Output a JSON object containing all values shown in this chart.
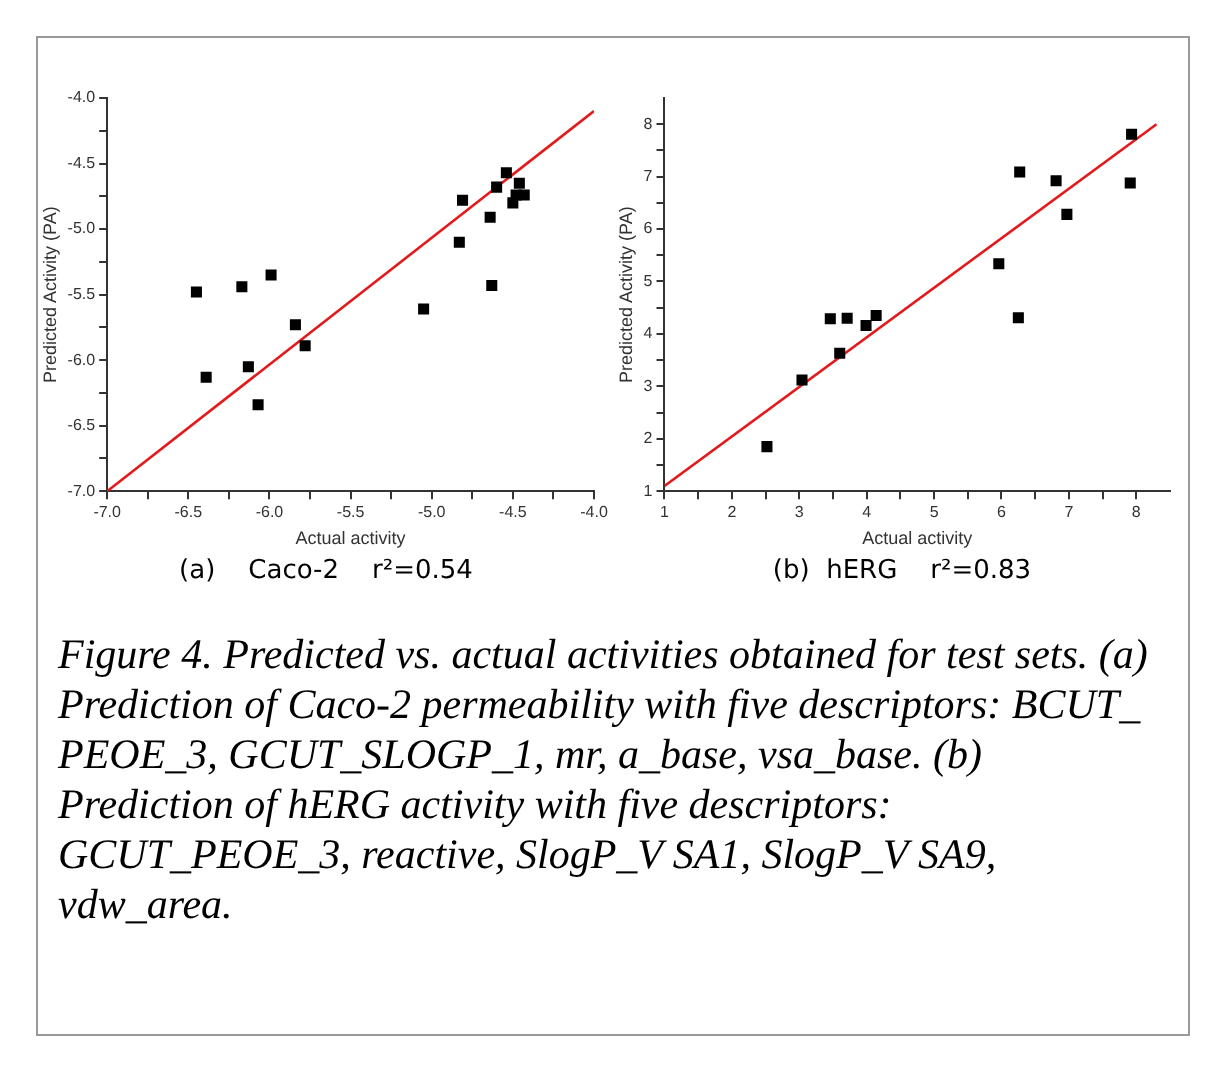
{
  "chart_data": [
    {
      "type": "scatter",
      "xlabel": "Actual activity",
      "ylabel": "Predicted Activity (PA)",
      "annotations": [
        "(a)    Caco-2    r²=0.54"
      ],
      "xlim": [
        -7,
        -4
      ],
      "ylim": [
        -7,
        -4
      ],
      "xticks": [
        {
          "value": -7,
          "label": "-7.0"
        },
        {
          "value": -6.75,
          "label": null
        },
        {
          "value": -6.5,
          "label": "-6.5"
        },
        {
          "value": -6.25,
          "label": null
        },
        {
          "value": -6,
          "label": "-6.0"
        },
        {
          "value": -5.75,
          "label": null
        },
        {
          "value": -5.5,
          "label": "-5.5"
        },
        {
          "value": -5.25,
          "label": null
        },
        {
          "value": -5,
          "label": "-5.0"
        },
        {
          "value": -4.75,
          "label": null
        },
        {
          "value": -4.5,
          "label": "-4.5"
        },
        {
          "value": -4.25,
          "label": null
        },
        {
          "value": -4,
          "label": "-4.0"
        }
      ],
      "yticks": [
        {
          "value": -7,
          "label": "-7.0"
        },
        {
          "value": -6.75,
          "label": null
        },
        {
          "value": -6.5,
          "label": "-6.5"
        },
        {
          "value": -6.25,
          "label": null
        },
        {
          "value": -6,
          "label": "-6.0"
        },
        {
          "value": -5.75,
          "label": null
        },
        {
          "value": -5.5,
          "label": "-5.5"
        },
        {
          "value": -5.25,
          "label": null
        },
        {
          "value": -5,
          "label": "-5.0"
        },
        {
          "value": -4.75,
          "label": null
        },
        {
          "value": -4.5,
          "label": "-4.5"
        },
        {
          "value": -4.25,
          "label": null
        },
        {
          "value": -4,
          "label": "-4.0"
        }
      ],
      "legend": false,
      "grid": false,
      "series": [
        {
          "type": "scatter",
          "marker": "square",
          "color": "#000000",
          "x": [
            -6.45,
            -6.39,
            -6.17,
            -6.13,
            -6.07,
            -5.99,
            -5.84,
            -5.78,
            -5.05,
            -4.83,
            -4.81,
            -4.64,
            -4.63,
            -4.6,
            -4.54,
            -4.5,
            -4.48,
            -4.46,
            -4.43
          ],
          "values": [
            -5.48,
            -6.13,
            -5.44,
            -6.05,
            -6.34,
            -5.35,
            -5.73,
            -5.89,
            -5.61,
            -5.1,
            -4.78,
            -4.91,
            -5.43,
            -4.68,
            -4.57,
            -4.8,
            -4.74,
            -4.65,
            -4.74
          ]
        },
        {
          "type": "line",
          "marker": "none",
          "color": "#e31a1c",
          "x": [
            -7,
            -4
          ],
          "values": [
            -7,
            -4.1
          ]
        }
      ]
    },
    {
      "type": "scatter",
      "xlabel": "Actual activity",
      "ylabel": "Predicted Activity (PA)",
      "annotations": [
        "(b)  hERG    r²=0.83",
        "Figure 4. Predicted vs. actual activities obtained for test sets. (a) Prediction of Caco-2 permeability with five descriptors: BCUT_ PEOE_3, GCUT_SLOGP_1, mr, a_base, vsa_base. (b) Prediction of hERG activity with five descriptors: GCUT_PEOE_3, reactive, SlogP_V SA1, SlogP_V SA9, vdw_area."
      ],
      "xlim": [
        1,
        8.5
      ],
      "ylim": [
        1,
        8.5
      ],
      "xticks": [
        1,
        {
          "value": 1.5,
          "label": null
        },
        2,
        {
          "value": 2.5,
          "label": null
        },
        3,
        {
          "value": 3.5,
          "label": null
        },
        4,
        {
          "value": 4.5,
          "label": null
        },
        5,
        {
          "value": 5.5,
          "label": null
        },
        6,
        {
          "value": 6.5,
          "label": null
        },
        7,
        {
          "value": 7.5,
          "label": null
        },
        8
      ],
      "yticks": [
        1,
        {
          "value": 1.5,
          "label": null
        },
        2,
        {
          "value": 2.5,
          "label": null
        },
        3,
        {
          "value": 3.5,
          "label": null
        },
        4,
        {
          "value": 4.5,
          "label": null
        },
        5,
        {
          "value": 5.5,
          "label": null
        },
        6,
        {
          "value": 6.5,
          "label": null
        },
        7,
        {
          "value": 7.5,
          "label": null
        },
        8
      ],
      "legend": false,
      "grid": false,
      "series": [
        {
          "type": "scatter",
          "marker": "square",
          "color": "#000000",
          "x": [
            2.52,
            3.04,
            3.46,
            3.6,
            3.71,
            3.99,
            4.14,
            5.96,
            6.25,
            6.27,
            6.81,
            6.97,
            7.91,
            7.93
          ],
          "values": [
            1.85,
            3.12,
            4.29,
            3.63,
            4.3,
            4.16,
            4.35,
            5.34,
            4.31,
            7.09,
            6.92,
            6.28,
            6.88,
            7.81
          ]
        },
        {
          "type": "line",
          "marker": "none",
          "color": "#e31a1c",
          "x": [
            1,
            8.3
          ],
          "values": [
            1.1,
            8
          ]
        }
      ]
    }
  ]
}
